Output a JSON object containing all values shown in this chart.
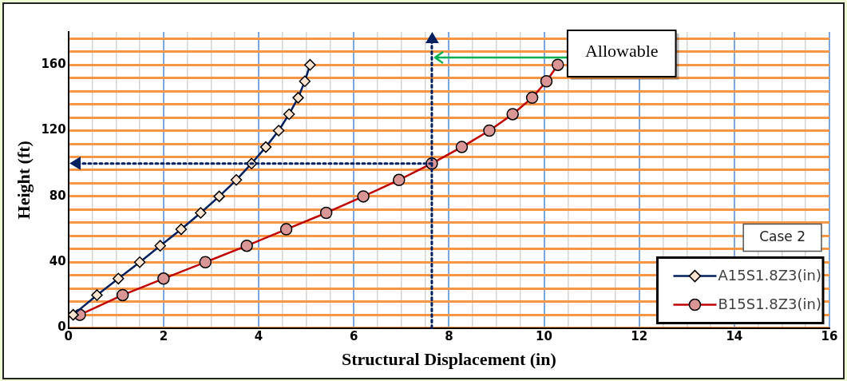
{
  "chart_data": {
    "type": "line",
    "xlabel": "Structural Displacement (in)",
    "ylabel": "Height (ft)",
    "xlim": [
      0,
      16
    ],
    "ylim": [
      0,
      180
    ],
    "xticks": [
      0,
      {
        "value": 0.5,
        "label": null
      },
      {
        "value": 1,
        "label": null
      },
      {
        "value": 1.5,
        "label": null
      },
      2,
      {
        "value": 2.5,
        "label": null
      },
      {
        "value": 3,
        "label": null
      },
      {
        "value": 3.5,
        "label": null
      },
      4,
      {
        "value": 4.5,
        "label": null
      },
      {
        "value": 5,
        "label": null
      },
      {
        "value": 5.5,
        "label": null
      },
      6,
      {
        "value": 6.5,
        "label": null
      },
      {
        "value": 7,
        "label": null
      },
      {
        "value": 7.5,
        "label": null
      },
      8,
      {
        "value": 8.5,
        "label": null
      },
      {
        "value": 9,
        "label": null
      },
      {
        "value": 9.5,
        "label": null
      },
      10,
      {
        "value": 10.5,
        "label": null
      },
      {
        "value": 11,
        "label": null
      },
      {
        "value": 11.5,
        "label": null
      },
      12,
      {
        "value": 12.5,
        "label": null
      },
      {
        "value": 13,
        "label": null
      },
      {
        "value": 13.5,
        "label": null
      },
      14,
      {
        "value": 14.5,
        "label": null
      },
      {
        "value": 15,
        "label": null
      },
      {
        "value": 15.5,
        "label": null
      },
      16
    ],
    "yticks": [
      0,
      {
        "value": 8,
        "label": null
      },
      {
        "value": 16,
        "label": null
      },
      {
        "value": 24,
        "label": null
      },
      {
        "value": 32,
        "label": null
      },
      40,
      {
        "value": 48,
        "label": null
      },
      {
        "value": 56,
        "label": null
      },
      {
        "value": 64,
        "label": null
      },
      {
        "value": 72,
        "label": null
      },
      80,
      {
        "value": 88,
        "label": null
      },
      {
        "value": 96,
        "label": null
      },
      {
        "value": 104,
        "label": null
      },
      {
        "value": 112,
        "label": null
      },
      120,
      {
        "value": 128,
        "label": null
      },
      {
        "value": 136,
        "label": null
      },
      {
        "value": 144,
        "label": null
      },
      {
        "value": 152,
        "label": null
      },
      160,
      {
        "value": 168,
        "label": null
      },
      {
        "value": 176,
        "label": null
      }
    ],
    "grid": true,
    "legend": "bottom right",
    "legend_title": "Case 2",
    "line_style": "solid",
    "series": [
      {
        "name": "A15S1.8Z3(in)",
        "color": "#002060",
        "marker": "diamond",
        "x": [
          0.1,
          0.6,
          1.05,
          1.5,
          1.93,
          2.37,
          2.78,
          3.17,
          3.53,
          3.85,
          4.15,
          4.42,
          4.64,
          4.83,
          4.97,
          5.08
        ],
        "values": [
          8,
          20,
          30,
          40,
          50,
          60,
          70,
          80,
          90,
          100,
          110,
          120,
          130,
          140,
          150,
          160
        ]
      },
      {
        "name": "B15S1.8Z3(in)",
        "color": "#c00000",
        "marker": "circle",
        "x": [
          0.24,
          1.14,
          2.0,
          2.88,
          3.75,
          4.58,
          5.42,
          6.2,
          6.95,
          7.64,
          8.27,
          8.85,
          9.34,
          9.75,
          10.05,
          10.29
        ],
        "values": [
          8,
          20,
          30,
          40,
          50,
          60,
          70,
          80,
          90,
          100,
          110,
          120,
          130,
          140,
          150,
          160
        ]
      }
    ],
    "ref_lines": [
      {
        "axis": "x",
        "value": 7.64,
        "color": "#002060",
        "line_style": "dotted",
        "label": "Allowable"
      },
      {
        "axis": "y",
        "value": 100,
        "color": "#002060",
        "line_style": "dotted"
      }
    ]
  }
}
